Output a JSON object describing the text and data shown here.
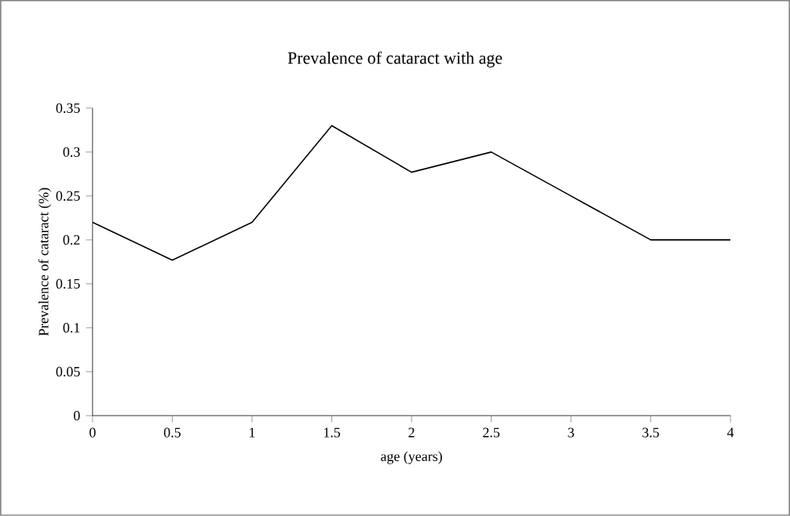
{
  "chart_data": {
    "type": "line",
    "title": "Prevalence of cataract with age",
    "xlabel": "age (years)",
    "ylabel": "Prevalence of cataract (%)",
    "x": [
      0,
      0.5,
      1,
      1.5,
      2,
      2.5,
      3,
      3.5,
      4
    ],
    "series": [
      {
        "color": "#000000",
        "values": [
          0.22,
          0.177,
          0.22,
          0.33,
          0.277,
          0.3,
          0.25,
          0.2,
          0.2
        ]
      }
    ],
    "xlim": [
      0,
      4
    ],
    "xticks": [
      0,
      0.5,
      1,
      1.5,
      2,
      2.5,
      3,
      3.5,
      4
    ],
    "ylim": [
      0,
      0.35
    ],
    "yticks": [
      0,
      0.05,
      0.1,
      0.15,
      0.2,
      0.25,
      0.3,
      0.35
    ],
    "grid": false,
    "marker": "none",
    "line_style": "solid"
  }
}
